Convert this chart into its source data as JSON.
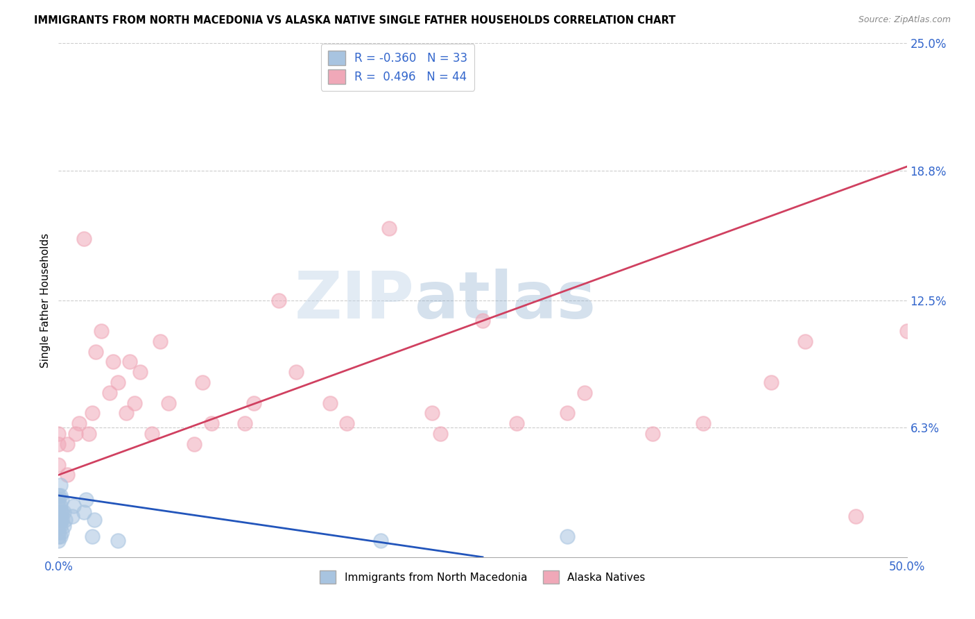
{
  "title": "IMMIGRANTS FROM NORTH MACEDONIA VS ALASKA NATIVE SINGLE FATHER HOUSEHOLDS CORRELATION CHART",
  "source": "Source: ZipAtlas.com",
  "ylabel_label": "Single Father Households",
  "blue_R": -0.36,
  "blue_N": 33,
  "pink_R": 0.496,
  "pink_N": 44,
  "blue_color": "#a8c4e0",
  "pink_color": "#f0a8b8",
  "blue_line_color": "#2255bb",
  "pink_line_color": "#d04060",
  "watermark_zip": "ZIP",
  "watermark_atlas": "atlas",
  "xlim": [
    0.0,
    0.5
  ],
  "ylim": [
    0.0,
    0.25
  ],
  "ytick_positions": [
    0.063,
    0.125,
    0.188,
    0.25
  ],
  "ytick_labels": [
    "6.3%",
    "12.5%",
    "18.8%",
    "25.0%"
  ],
  "xtick_positions": [
    0.0,
    0.5
  ],
  "xtick_labels": [
    "0.0%",
    "50.0%"
  ],
  "pink_line_x0": 0.0,
  "pink_line_y0": 0.04,
  "pink_line_x1": 0.5,
  "pink_line_y1": 0.19,
  "blue_line_x0": 0.0,
  "blue_line_y0": 0.03,
  "blue_line_x1": 0.25,
  "blue_line_y1": 0.0,
  "blue_points_x": [
    0.0,
    0.0,
    0.0,
    0.0,
    0.0,
    0.0,
    0.0,
    0.0,
    0.0,
    0.0,
    0.001,
    0.001,
    0.001,
    0.001,
    0.001,
    0.001,
    0.001,
    0.002,
    0.002,
    0.002,
    0.002,
    0.003,
    0.003,
    0.004,
    0.008,
    0.009,
    0.015,
    0.016,
    0.02,
    0.021,
    0.035,
    0.19,
    0.3
  ],
  "blue_points_y": [
    0.008,
    0.01,
    0.012,
    0.015,
    0.018,
    0.02,
    0.022,
    0.025,
    0.028,
    0.03,
    0.01,
    0.015,
    0.018,
    0.022,
    0.025,
    0.03,
    0.035,
    0.012,
    0.018,
    0.022,
    0.028,
    0.015,
    0.022,
    0.018,
    0.02,
    0.025,
    0.022,
    0.028,
    0.01,
    0.018,
    0.008,
    0.008,
    0.01
  ],
  "pink_points_x": [
    0.0,
    0.0,
    0.0,
    0.005,
    0.005,
    0.01,
    0.012,
    0.015,
    0.018,
    0.02,
    0.022,
    0.025,
    0.03,
    0.032,
    0.035,
    0.04,
    0.042,
    0.045,
    0.048,
    0.055,
    0.06,
    0.065,
    0.08,
    0.085,
    0.09,
    0.11,
    0.115,
    0.13,
    0.14,
    0.16,
    0.17,
    0.195,
    0.22,
    0.225,
    0.25,
    0.27,
    0.3,
    0.31,
    0.35,
    0.38,
    0.42,
    0.44,
    0.47,
    0.5
  ],
  "pink_points_y": [
    0.045,
    0.055,
    0.06,
    0.04,
    0.055,
    0.06,
    0.065,
    0.155,
    0.06,
    0.07,
    0.1,
    0.11,
    0.08,
    0.095,
    0.085,
    0.07,
    0.095,
    0.075,
    0.09,
    0.06,
    0.105,
    0.075,
    0.055,
    0.085,
    0.065,
    0.065,
    0.075,
    0.125,
    0.09,
    0.075,
    0.065,
    0.16,
    0.07,
    0.06,
    0.115,
    0.065,
    0.07,
    0.08,
    0.06,
    0.065,
    0.085,
    0.105,
    0.02,
    0.11
  ]
}
